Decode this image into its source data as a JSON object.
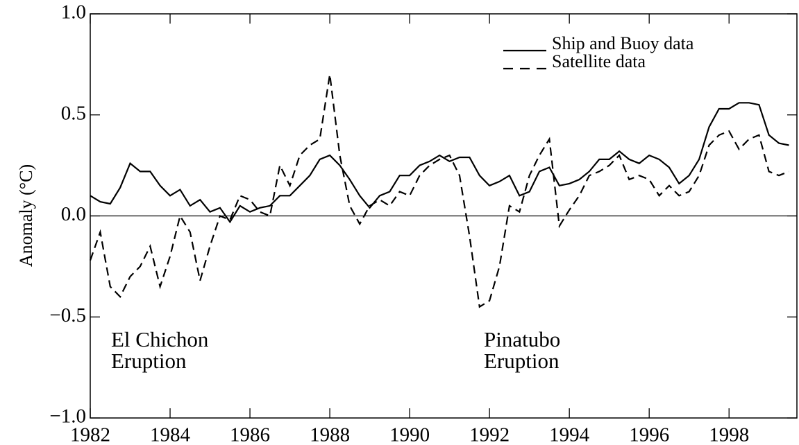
{
  "chart_data": {
    "type": "line",
    "ylabel": "Anomaly (°C)",
    "annotations": [
      [
        "El Chichon",
        "Eruption"
      ],
      [
        "Pinatubo",
        "Eruption"
      ]
    ],
    "x": [
      1982.0,
      1982.25,
      1982.5,
      1982.75,
      1983.0,
      1983.25,
      1983.5,
      1983.75,
      1984.0,
      1984.25,
      1984.5,
      1984.75,
      1985.0,
      1985.25,
      1985.5,
      1985.75,
      1986.0,
      1986.25,
      1986.5,
      1986.75,
      1987.0,
      1987.25,
      1987.5,
      1987.75,
      1988.0,
      1988.25,
      1988.5,
      1988.75,
      1989.0,
      1989.25,
      1989.5,
      1989.75,
      1990.0,
      1990.25,
      1990.5,
      1990.75,
      1991.0,
      1991.25,
      1991.5,
      1991.75,
      1992.0,
      1992.25,
      1992.5,
      1992.75,
      1993.0,
      1993.25,
      1993.5,
      1993.75,
      1994.0,
      1994.25,
      1994.5,
      1994.75,
      1995.0,
      1995.25,
      1995.5,
      1995.75,
      1996.0,
      1996.25,
      1996.5,
      1996.75,
      1997.0,
      1997.25,
      1997.5,
      1997.75,
      1998.0,
      1998.25,
      1998.5,
      1998.75,
      1999.0,
      1999.25,
      1999.5
    ],
    "series": [
      {
        "name": "Ship and Buoy data",
        "color": "#000000",
        "line_style": "solid",
        "values": [
          0.1,
          0.07,
          0.06,
          0.14,
          0.26,
          0.22,
          0.22,
          0.15,
          0.1,
          0.13,
          0.05,
          0.08,
          0.02,
          0.04,
          -0.03,
          0.05,
          0.02,
          0.04,
          0.05,
          0.1,
          0.1,
          0.15,
          0.2,
          0.28,
          0.3,
          0.25,
          0.18,
          0.1,
          0.04,
          0.1,
          0.12,
          0.2,
          0.2,
          0.25,
          0.27,
          0.3,
          0.27,
          0.29,
          0.29,
          0.2,
          0.15,
          0.17,
          0.2,
          0.1,
          0.12,
          0.22,
          0.24,
          0.15,
          0.16,
          0.18,
          0.22,
          0.28,
          0.28,
          0.32,
          0.28,
          0.26,
          0.3,
          0.28,
          0.24,
          0.16,
          0.2,
          0.28,
          0.44,
          0.53,
          0.53,
          0.56,
          0.56,
          0.55,
          0.4,
          0.36,
          0.35
        ]
      },
      {
        "name": "Satellite data",
        "color": "#000000",
        "line_style": "dashed",
        "values": [
          -0.22,
          -0.08,
          -0.35,
          -0.4,
          -0.3,
          -0.25,
          -0.15,
          -0.35,
          -0.2,
          0.0,
          -0.08,
          -0.32,
          -0.15,
          0.0,
          -0.02,
          0.1,
          0.08,
          0.02,
          0.0,
          0.25,
          0.15,
          0.3,
          0.35,
          0.38,
          0.7,
          0.3,
          0.05,
          -0.04,
          0.05,
          0.08,
          0.05,
          0.12,
          0.1,
          0.2,
          0.25,
          0.28,
          0.3,
          0.2,
          -0.1,
          -0.45,
          -0.42,
          -0.25,
          0.05,
          0.02,
          0.2,
          0.3,
          0.38,
          -0.05,
          0.03,
          0.1,
          0.2,
          0.22,
          0.25,
          0.3,
          0.18,
          0.2,
          0.18,
          0.1,
          0.15,
          0.1,
          0.12,
          0.2,
          0.35,
          0.4,
          0.42,
          0.33,
          0.38,
          0.4,
          0.22,
          0.2,
          0.22
        ]
      }
    ],
    "xlim": [
      1982,
      1999.7
    ],
    "xticks": [
      1982,
      1984,
      1986,
      1988,
      1990,
      1992,
      1994,
      1996,
      1998
    ],
    "ylim": [
      -1,
      1
    ],
    "yticks": [
      {
        "value": -1,
        "label": "−1.0"
      },
      {
        "value": -0.5,
        "label": "−0.5"
      },
      {
        "value": 0,
        "label": "0.0"
      },
      {
        "value": 0.5,
        "label": "0.5"
      },
      {
        "value": 1,
        "label": "1.0"
      }
    ],
    "legend": "upper right"
  }
}
